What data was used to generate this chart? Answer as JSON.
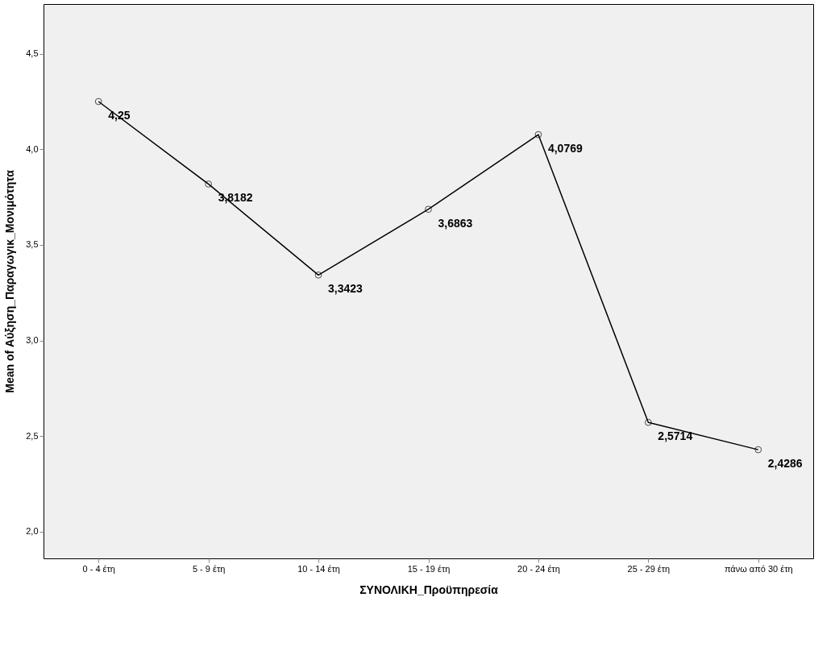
{
  "chart_data": {
    "type": "line",
    "xlabel": "ΣΥΝΟΛΙΚΗ_Προϋπηρεσία",
    "ylabel": "Mean of Αύξηση_Παραγωγικ_Μονιμότητα",
    "categories": [
      "0 - 4 έτη",
      "5 - 9 έτη",
      "10 - 14 έτη",
      "15 - 19 έτη",
      "20 - 24 έτη",
      "25 - 29 έτη",
      "πάνω από 30 έτη"
    ],
    "series": [
      {
        "color": "#000000",
        "values": [
          4.25,
          3.8182,
          3.3423,
          3.6863,
          4.0769,
          2.5714,
          2.4286
        ],
        "value_labels": [
          "4,25",
          "3,8182",
          "3,3423",
          "3,6863",
          "4,0769",
          "2,5714",
          "2,4286"
        ]
      }
    ],
    "ylim": [
      1.86,
      4.76
    ],
    "yticks": [
      {
        "value": 2.0,
        "label": "2,0"
      },
      {
        "value": 2.5,
        "label": "2,5"
      },
      {
        "value": 3.0,
        "label": "3,0"
      },
      {
        "value": 3.5,
        "label": "3,5"
      },
      {
        "value": 4.0,
        "label": "4,0"
      },
      {
        "value": 4.5,
        "label": "4,5"
      }
    ],
    "grid": false,
    "marker": "circle",
    "line_style": "solid"
  }
}
